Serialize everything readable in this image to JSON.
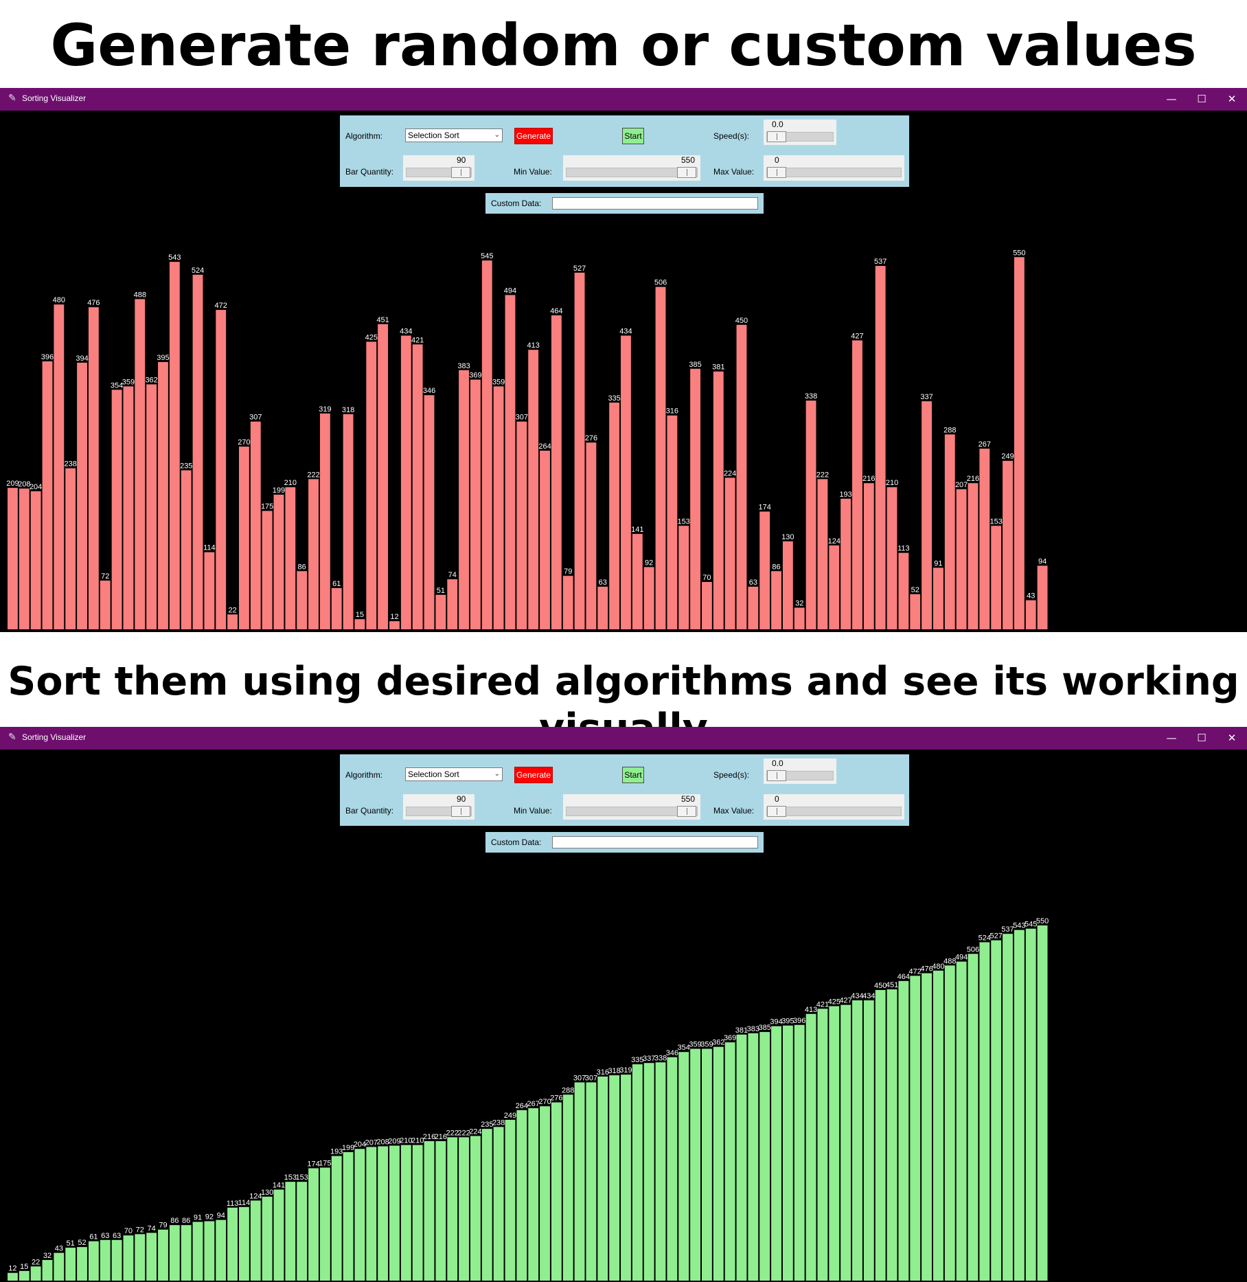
{
  "headings": {
    "top": "Generate random or custom values",
    "middle": "Sort them using desired algorithms and see its working visually"
  },
  "window": {
    "title": "Sorting Visualizer",
    "controls": {
      "minimize": "—",
      "maximize": "☐",
      "close": "✕"
    }
  },
  "controls": {
    "algorithm_label": "Algorithm:",
    "algorithm_selected": "Selection Sort",
    "generate_label": "Generate",
    "start_label": "Start",
    "speed_label": "Speed(s):",
    "speed_value": "0.0",
    "bar_quantity_label": "Bar Quantity:",
    "bar_quantity_value": "90",
    "min_value_label": "Min Value:",
    "min_value_value": "550",
    "max_value_label": "Max Value:",
    "max_value_value": "0",
    "custom_data_label": "Custom Data:",
    "custom_data_value": ""
  },
  "colors": {
    "titlebar": "#6e0f6e",
    "panel": "#acd8e6",
    "generate_button": "#ff0000",
    "start_button": "#90ee90",
    "unsorted_bar": "#fa7f7f",
    "sorted_bar": "#90ee90",
    "canvas": "#000000"
  },
  "chart_data": [
    {
      "type": "bar",
      "state": "unsorted",
      "values": [
        209,
        208,
        204,
        396,
        480,
        238,
        394,
        476,
        72,
        354,
        359,
        488,
        362,
        395,
        543,
        235,
        524,
        114,
        472,
        22,
        270,
        307,
        175,
        199,
        210,
        86,
        222,
        319,
        61,
        318,
        15,
        425,
        451,
        12,
        434,
        421,
        346,
        51,
        74,
        383,
        369,
        545,
        359,
        494,
        307,
        413,
        264,
        464,
        79,
        527,
        276,
        63,
        335,
        434,
        141,
        92,
        506,
        316,
        153,
        385,
        70,
        381,
        224,
        450,
        63,
        174,
        86,
        130,
        32,
        338,
        222,
        124,
        193,
        427,
        216,
        537,
        210,
        113,
        52,
        337,
        91,
        288,
        207,
        216,
        267,
        153,
        249,
        550,
        43,
        94
      ]
    },
    {
      "type": "bar",
      "state": "sorted",
      "values": [
        12,
        15,
        22,
        32,
        43,
        51,
        52,
        61,
        63,
        63,
        70,
        72,
        74,
        79,
        86,
        86,
        91,
        92,
        94,
        113,
        114,
        124,
        130,
        141,
        153,
        153,
        174,
        175,
        193,
        199,
        204,
        207,
        208,
        209,
        210,
        210,
        216,
        216,
        222,
        222,
        224,
        235,
        238,
        249,
        264,
        267,
        270,
        276,
        288,
        307,
        307,
        316,
        318,
        319,
        335,
        337,
        338,
        346,
        354,
        359,
        359,
        362,
        369,
        381,
        383,
        385,
        394,
        395,
        396,
        413,
        421,
        425,
        427,
        434,
        434,
        450,
        451,
        464,
        472,
        476,
        480,
        488,
        494,
        506,
        524,
        527,
        537,
        543,
        545,
        550
      ]
    }
  ]
}
